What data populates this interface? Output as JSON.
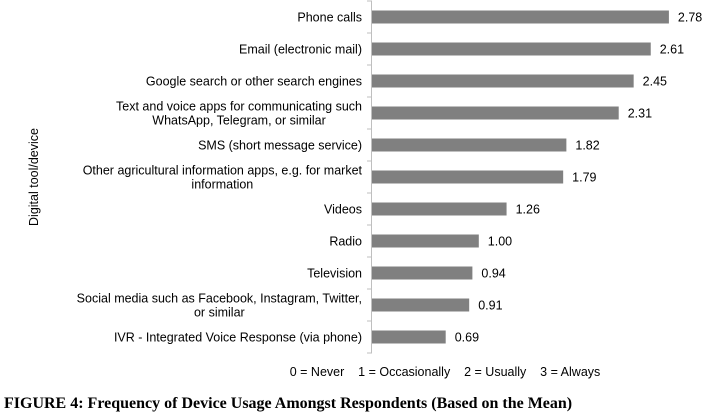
{
  "chart_data": {
    "type": "bar",
    "orientation": "horizontal",
    "categories": [
      [
        "Phone calls"
      ],
      [
        "Email (electronic mail)"
      ],
      [
        "Google search or other search engines"
      ],
      [
        "Text and voice apps for communicating such",
        "WhatsApp, Telegram, or similar"
      ],
      [
        "SMS (short message service)"
      ],
      [
        "Other agricultural information apps, e.g. for market",
        "information"
      ],
      [
        "Videos"
      ],
      [
        "Radio"
      ],
      [
        "Television"
      ],
      [
        "Social media such as Facebook, Instagram, Twitter,",
        "or similar"
      ],
      [
        "IVR - Integrated Voice Response (via phone)"
      ]
    ],
    "values": [
      2.78,
      2.61,
      2.45,
      2.31,
      1.82,
      1.79,
      1.26,
      1.0,
      0.94,
      0.91,
      0.69
    ],
    "value_labels": [
      "2.78",
      "2.61",
      "2.45",
      "2.31",
      "1.82",
      "1.79",
      "1.26",
      "1.00",
      "0.94",
      "0.91",
      "0.69"
    ],
    "xlabel": "0 = Never    1 = Occasionally    2 = Usually    3 = Always",
    "ylabel": "Digital tool/device",
    "xlim": [
      0,
      3
    ],
    "grid": false,
    "bar_color": "#808080"
  },
  "caption": "FIGURE 4: Frequency of Device Usage Amongst Respondents (Based on the Mean)"
}
